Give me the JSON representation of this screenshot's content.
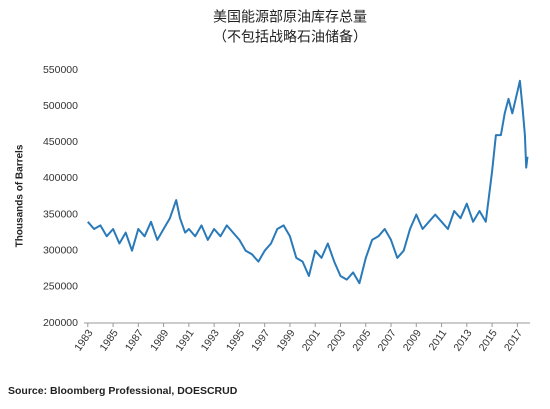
{
  "chart_data": {
    "type": "line",
    "title": "美国能源部原油库存总量",
    "subtitle": "（不包括战略石油储备）",
    "y_label": "Thousands of Barrels",
    "source": "Source: Bloomberg Professional, DOESCRUD",
    "color": "#2a7ab9",
    "x": [
      1983.0,
      1983.5,
      1984.0,
      1984.5,
      1985.0,
      1985.5,
      1986.0,
      1986.5,
      1987.0,
      1987.5,
      1988.0,
      1988.5,
      1989.0,
      1989.5,
      1990.0,
      1990.3,
      1990.7,
      1991.0,
      1991.5,
      1992.0,
      1992.5,
      1993.0,
      1993.5,
      1994.0,
      1994.5,
      1995.0,
      1995.5,
      1996.0,
      1996.5,
      1997.0,
      1997.5,
      1998.0,
      1998.5,
      1999.0,
      1999.5,
      2000.0,
      2000.5,
      2001.0,
      2001.5,
      2002.0,
      2002.5,
      2003.0,
      2003.5,
      2004.0,
      2004.5,
      2005.0,
      2005.5,
      2006.0,
      2006.5,
      2007.0,
      2007.5,
      2008.0,
      2008.5,
      2009.0,
      2009.5,
      2010.0,
      2010.5,
      2011.0,
      2011.5,
      2012.0,
      2012.5,
      2013.0,
      2013.5,
      2014.0,
      2014.5,
      2015.0,
      2015.3,
      2015.7,
      2016.0,
      2016.3,
      2016.6,
      2017.0,
      2017.2,
      2017.4,
      2017.6,
      2017.7,
      2017.8
    ],
    "values": [
      340000,
      330000,
      335000,
      320000,
      330000,
      310000,
      325000,
      300000,
      330000,
      320000,
      340000,
      315000,
      330000,
      345000,
      370000,
      345000,
      325000,
      330000,
      320000,
      335000,
      315000,
      330000,
      320000,
      335000,
      325000,
      315000,
      300000,
      295000,
      285000,
      300000,
      310000,
      330000,
      335000,
      320000,
      290000,
      285000,
      265000,
      300000,
      290000,
      310000,
      285000,
      265000,
      260000,
      270000,
      255000,
      290000,
      315000,
      320000,
      330000,
      315000,
      290000,
      300000,
      330000,
      350000,
      330000,
      340000,
      350000,
      340000,
      330000,
      355000,
      345000,
      365000,
      340000,
      355000,
      340000,
      410000,
      460000,
      460000,
      490000,
      510000,
      490000,
      520000,
      535000,
      500000,
      460000,
      415000,
      430000
    ],
    "xlim": [
      1982.7,
      2018.0
    ],
    "xticks": [
      1983,
      1985,
      1987,
      1989,
      1991,
      1993,
      1995,
      1997,
      1999,
      2001,
      2003,
      2005,
      2007,
      2009,
      2011,
      2013,
      2015,
      2017
    ],
    "ylim": [
      200000,
      550000
    ],
    "yticks": [
      200000,
      250000,
      300000,
      350000,
      400000,
      450000,
      500000,
      550000
    ]
  }
}
